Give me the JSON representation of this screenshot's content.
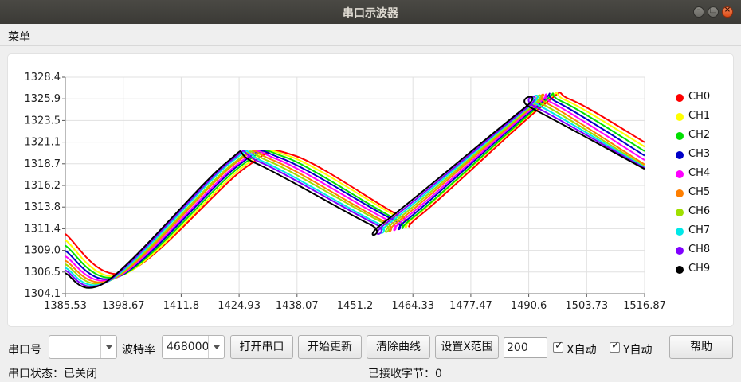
{
  "window": {
    "title": "串口示波器"
  },
  "menubar": {
    "menu_label": "菜单"
  },
  "legend": [
    {
      "name": "CH0",
      "color": "#ff0000"
    },
    {
      "name": "CH1",
      "color": "#ffff00"
    },
    {
      "name": "CH2",
      "color": "#00e000"
    },
    {
      "name": "CH3",
      "color": "#0000c8"
    },
    {
      "name": "CH4",
      "color": "#ff00ff"
    },
    {
      "name": "CH5",
      "color": "#ff7f00"
    },
    {
      "name": "CH6",
      "color": "#a0e000"
    },
    {
      "name": "CH7",
      "color": "#00e8e8"
    },
    {
      "name": "CH8",
      "color": "#8000ff"
    },
    {
      "name": "CH9",
      "color": "#000000"
    }
  ],
  "chart_data": {
    "type": "line",
    "x_ticks": [
      "1385.53",
      "1398.67",
      "1411.8",
      "1424.93",
      "1438.07",
      "1451.2",
      "1464.33",
      "1477.47",
      "1490.6",
      "1503.73",
      "1516.87"
    ],
    "y_ticks": [
      "1328.4",
      "1325.9",
      "1323.5",
      "1321.1",
      "1318.7",
      "1316.2",
      "1313.8",
      "1311.4",
      "1309.0",
      "1306.5",
      "1304.1"
    ],
    "xlim": [
      1385.53,
      1516.87
    ],
    "ylim": [
      1304.1,
      1328.4
    ],
    "grid": true,
    "legend_position": "right",
    "series": [
      {
        "name": "CH0",
        "color": "#ff0000",
        "x": [
          1385.53,
          1399.5,
          1426.5,
          1437.5,
          1461.5,
          1466.0,
          1494.0,
          1500.0,
          1516.87
        ],
        "y": [
          1310.8,
          1306.5,
          1318.3,
          1319.6,
          1312.8,
          1312.9,
          1325.3,
          1325.9,
          1321.1
        ]
      },
      {
        "name": "CH1",
        "color": "#ffff00",
        "x": [
          1385.53,
          1399.0,
          1426.0,
          1436.5,
          1461.0,
          1465.0,
          1493.5,
          1499.0,
          1516.87
        ],
        "y": [
          1310.1,
          1306.3,
          1318.4,
          1319.5,
          1312.7,
          1312.8,
          1325.3,
          1325.8,
          1320.6
        ]
      },
      {
        "name": "CH2",
        "color": "#00e000",
        "x": [
          1385.53,
          1398.5,
          1425.5,
          1435.5,
          1460.0,
          1464.5,
          1493.0,
          1498.0,
          1516.87
        ],
        "y": [
          1309.5,
          1306.2,
          1318.5,
          1319.4,
          1312.6,
          1312.7,
          1325.2,
          1325.7,
          1320.1
        ]
      },
      {
        "name": "CH3",
        "color": "#0000c8",
        "x": [
          1385.53,
          1398.0,
          1425.0,
          1434.5,
          1459.5,
          1463.5,
          1492.5,
          1497.0,
          1516.87
        ],
        "y": [
          1308.9,
          1306.1,
          1318.6,
          1319.3,
          1312.5,
          1312.6,
          1325.2,
          1325.6,
          1319.6
        ]
      },
      {
        "name": "CH4",
        "color": "#ff00ff",
        "x": [
          1385.53,
          1397.5,
          1424.5,
          1433.5,
          1458.5,
          1462.5,
          1492.0,
          1496.0,
          1516.87
        ],
        "y": [
          1308.3,
          1306.0,
          1318.6,
          1319.2,
          1312.4,
          1312.5,
          1325.1,
          1325.5,
          1319.1
        ]
      },
      {
        "name": "CH5",
        "color": "#ff7f00",
        "x": [
          1385.53,
          1397.0,
          1424.0,
          1432.5,
          1457.5,
          1461.5,
          1491.5,
          1495.0,
          1516.87
        ],
        "y": [
          1307.8,
          1305.9,
          1318.7,
          1319.1,
          1312.3,
          1312.4,
          1325.1,
          1325.4,
          1318.6
        ]
      },
      {
        "name": "CH6",
        "color": "#a0e000",
        "x": [
          1385.53,
          1396.5,
          1423.5,
          1431.5,
          1457.0,
          1460.5,
          1491.0,
          1494.0,
          1516.87
        ],
        "y": [
          1307.4,
          1305.8,
          1318.7,
          1319.0,
          1312.2,
          1312.3,
          1325.0,
          1325.3,
          1318.4
        ]
      },
      {
        "name": "CH7",
        "color": "#00e8e8",
        "x": [
          1385.53,
          1396.0,
          1423.0,
          1430.5,
          1456.0,
          1459.5,
          1490.5,
          1493.0,
          1516.87
        ],
        "y": [
          1307.0,
          1305.7,
          1318.8,
          1318.9,
          1312.1,
          1312.2,
          1325.0,
          1325.2,
          1318.3
        ]
      },
      {
        "name": "CH8",
        "color": "#8000ff",
        "x": [
          1385.53,
          1395.5,
          1422.5,
          1429.5,
          1455.5,
          1458.5,
          1490.0,
          1492.0,
          1516.87
        ],
        "y": [
          1306.7,
          1305.6,
          1318.8,
          1318.9,
          1312.0,
          1312.1,
          1324.9,
          1325.1,
          1318.2
        ]
      },
      {
        "name": "CH9",
        "color": "#000000",
        "x": [
          1385.53,
          1395.0,
          1422.0,
          1428.5,
          1454.5,
          1457.5,
          1489.5,
          1491.0,
          1516.87
        ],
        "y": [
          1306.4,
          1305.5,
          1318.8,
          1318.8,
          1311.9,
          1312.0,
          1324.9,
          1325.0,
          1318.1
        ]
      }
    ]
  },
  "controls": {
    "port_label": "串口号",
    "port_value": "",
    "baud_label": "波特率",
    "baud_value": "468000",
    "open_port_button": "打开串口",
    "start_update_button": "开始更新",
    "clear_curves_button": "清除曲线",
    "set_x_range_button": "设置X范围",
    "x_range_value": "200",
    "x_auto_label": "X自动",
    "x_auto_checked": true,
    "y_auto_label": "Y自动",
    "y_auto_checked": true,
    "help_button": "帮助"
  },
  "status": {
    "port_status": "串口状态：已关闭",
    "bytes_received": "已接收字节：0"
  }
}
